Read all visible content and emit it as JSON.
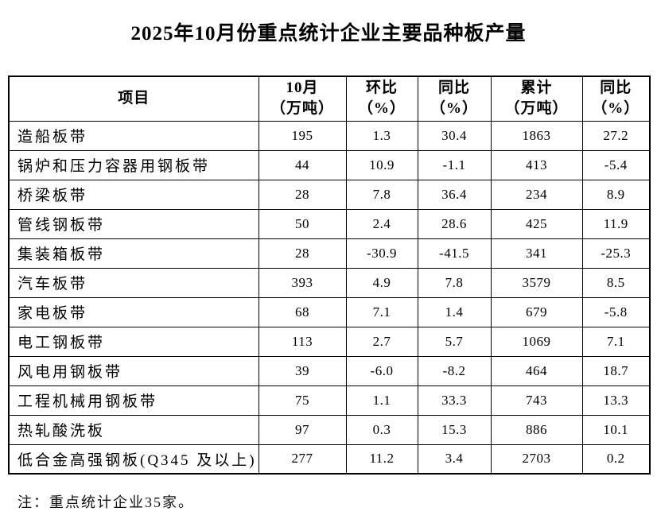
{
  "title": "2025年10月份重点统计企业主要品种板产量",
  "note": "注：重点统计企业35家。",
  "table": {
    "headers": [
      {
        "l1": "项目",
        "l2": ""
      },
      {
        "l1": "10月",
        "l2": "（万吨）"
      },
      {
        "l1": "环比",
        "l2": "（%）"
      },
      {
        "l1": "同比",
        "l2": "（%）"
      },
      {
        "l1": "累计",
        "l2": "（万吨）"
      },
      {
        "l1": "同比",
        "l2": "（%）"
      }
    ],
    "rows": [
      [
        "造船板带",
        "195",
        "1.3",
        "30.4",
        "1863",
        "27.2"
      ],
      [
        "锅炉和压力容器用钢板带",
        "44",
        "10.9",
        "-1.1",
        "413",
        "-5.4"
      ],
      [
        "桥梁板带",
        "28",
        "7.8",
        "36.4",
        "234",
        "8.9"
      ],
      [
        "管线钢板带",
        "50",
        "2.4",
        "28.6",
        "425",
        "11.9"
      ],
      [
        "集装箱板带",
        "28",
        "-30.9",
        "-41.5",
        "341",
        "-25.3"
      ],
      [
        "汽车板带",
        "393",
        "4.9",
        "7.8",
        "3579",
        "8.5"
      ],
      [
        "家电板带",
        "68",
        "7.1",
        "1.4",
        "679",
        "-5.8"
      ],
      [
        "电工钢板带",
        "113",
        "2.7",
        "5.7",
        "1069",
        "7.1"
      ],
      [
        "风电用钢板带",
        "39",
        "-6.0",
        "-8.2",
        "464",
        "18.7"
      ],
      [
        "工程机械用钢板带",
        "75",
        "1.1",
        "33.3",
        "743",
        "13.3"
      ],
      [
        "热轧酸洗板",
        "97",
        "0.3",
        "15.3",
        "886",
        "10.1"
      ],
      [
        "低合金高强钢板(Q345 及以上)",
        "277",
        "11.2",
        "3.4",
        "2703",
        "0.2"
      ]
    ]
  }
}
